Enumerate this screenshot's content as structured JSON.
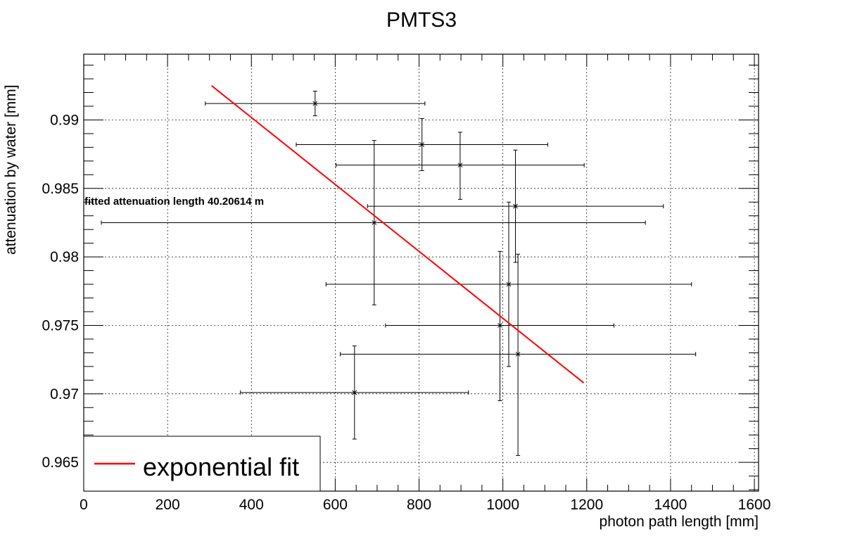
{
  "chart_data": {
    "type": "scatter",
    "title": "PMTS3",
    "xlabel": "photon path length [mm]",
    "ylabel": "attenuation by water [mm]",
    "xlim": [
      0,
      1610
    ],
    "ylim": [
      0.9629,
      0.9948
    ],
    "x_ticks": [
      0,
      200,
      400,
      600,
      800,
      1000,
      1200,
      1400,
      1600
    ],
    "x_tick_labels": [
      "0",
      "200",
      "400",
      "600",
      "800",
      "1000",
      "1200",
      "1400",
      "1600"
    ],
    "y_ticks": [
      0.965,
      0.97,
      0.975,
      0.98,
      0.985,
      0.99
    ],
    "y_tick_labels": [
      "0.965",
      "0.97",
      "0.975",
      "0.98",
      "0.985",
      "0.99"
    ],
    "grid": true,
    "legend_position": "bottom-left",
    "annotation": "fitted attenuation length 40.20614 m",
    "points": [
      {
        "x": 552,
        "y": 0.9912,
        "x_low": 290,
        "x_high": 814,
        "y_low": 0.9903,
        "y_high": 0.9921
      },
      {
        "x": 807,
        "y": 0.9882,
        "x_low": 507,
        "x_high": 1107,
        "y_low": 0.9863,
        "y_high": 0.9901
      },
      {
        "x": 898,
        "y": 0.9867,
        "x_low": 602,
        "x_high": 1194,
        "y_low": 0.9842,
        "y_high": 0.9891
      },
      {
        "x": 1030,
        "y": 0.9837,
        "x_low": 677,
        "x_high": 1383,
        "y_low": 0.9796,
        "y_high": 0.9878
      },
      {
        "x": 693,
        "y": 0.9825,
        "x_low": 42,
        "x_high": 1340,
        "y_low": 0.9765,
        "y_high": 0.9885
      },
      {
        "x": 1014,
        "y": 0.978,
        "x_low": 578,
        "x_high": 1450,
        "y_low": 0.972,
        "y_high": 0.984
      },
      {
        "x": 993,
        "y": 0.975,
        "x_low": 720,
        "x_high": 1265,
        "y_low": 0.9695,
        "y_high": 0.9804
      },
      {
        "x": 1036,
        "y": 0.9729,
        "x_low": 612,
        "x_high": 1460,
        "y_low": 0.9655,
        "y_high": 0.9802
      },
      {
        "x": 646,
        "y": 0.9701,
        "x_low": 374,
        "x_high": 918,
        "y_low": 0.9667,
        "y_high": 0.9735
      }
    ],
    "fit_line": {
      "name": "exponential fit",
      "color": "#ff0000",
      "x": [
        305,
        1193
      ],
      "y": [
        0.9925,
        0.9708
      ]
    }
  }
}
